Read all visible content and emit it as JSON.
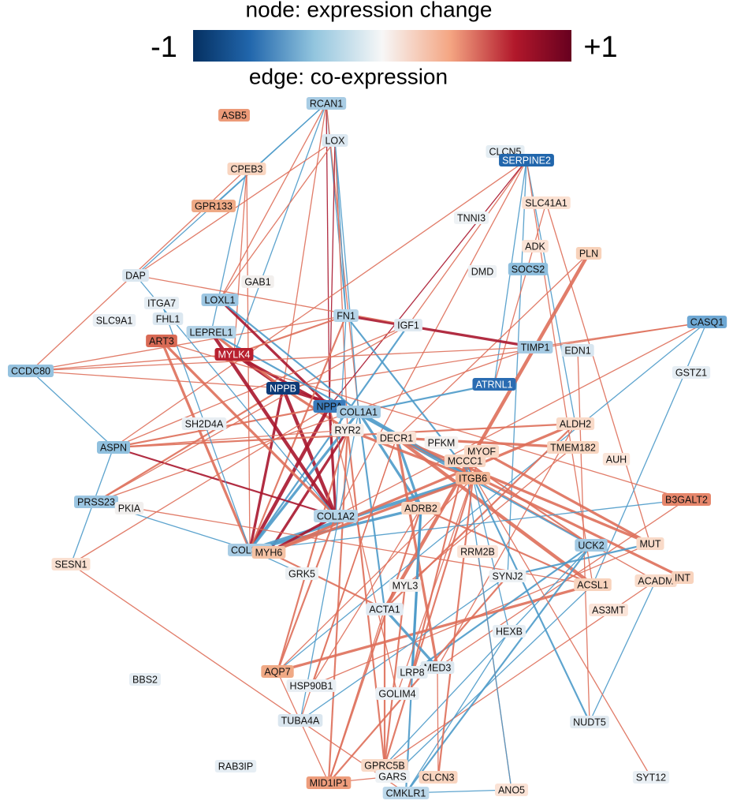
{
  "legend": {
    "title": "node: expression change",
    "min_label": "-1",
    "max_label": "+1",
    "edge_title": "edge: co-expression"
  },
  "nodes": [
    {
      "label": "RCAN1",
      "color": "#a8cce4"
    },
    {
      "label": "ASB5",
      "color": "#ec9a78"
    },
    {
      "label": "LOX",
      "color": "#dce8f1"
    },
    {
      "label": "CPEB3",
      "color": "#f9d5c0"
    },
    {
      "label": "CLCN5",
      "color": "#e4edf3"
    },
    {
      "label": "SERPINE2",
      "color": "#2166ac"
    },
    {
      "label": "SLC41A1",
      "color": "#fbe1d2"
    },
    {
      "label": "TNNI3",
      "color": "#eef2f5"
    },
    {
      "label": "GPR133",
      "color": "#efaa86"
    },
    {
      "label": "ADK",
      "color": "#fbe3d6"
    },
    {
      "label": "PLN",
      "color": "#f8d2ba"
    },
    {
      "label": "DMD",
      "color": "#edf1f4"
    },
    {
      "label": "SOCS2",
      "color": "#8fbfde"
    },
    {
      "label": "DAP",
      "color": "#dbe7f0"
    },
    {
      "label": "GAB1",
      "color": "#f2efed"
    },
    {
      "label": "ITGA7",
      "color": "#e6eef4"
    },
    {
      "label": "LOXL1",
      "color": "#9cc6e2"
    },
    {
      "label": "SLC9A1",
      "color": "#e9eff4"
    },
    {
      "label": "FHL1",
      "color": "#dbe7f0"
    },
    {
      "label": "FN1",
      "color": "#b7d5e9"
    },
    {
      "label": "IGF1",
      "color": "#dfe9f1"
    },
    {
      "label": "CASQ1",
      "color": "#6ea8d4"
    },
    {
      "label": "LEPREL1",
      "color": "#b5d4e8"
    },
    {
      "label": "ART3",
      "color": "#d96a55"
    },
    {
      "label": "MYLK4",
      "color": "#b8202f"
    },
    {
      "label": "TIMP1",
      "color": "#a6cbe4"
    },
    {
      "label": "EDN1",
      "color": "#d8e6f0"
    },
    {
      "label": "CCDC80",
      "color": "#95c2df"
    },
    {
      "label": "GSTZ1",
      "color": "#e6eef4"
    },
    {
      "label": "ATRNL1",
      "color": "#2a6cb2"
    },
    {
      "label": "NPPB",
      "color": "#0d3b78"
    },
    {
      "label": "NPPA",
      "color": "#3a7bbb"
    },
    {
      "label": "COL1A1",
      "color": "#a6cbe4"
    },
    {
      "label": "ALDH2",
      "color": "#f9dac8"
    },
    {
      "label": "SH2D4A",
      "color": "#e8eef3"
    },
    {
      "label": "RYR2",
      "color": "#f3ece8"
    },
    {
      "label": "DECR1",
      "color": "#f9e2d5"
    },
    {
      "label": "PFKM",
      "color": "#f4f1ef"
    },
    {
      "label": "MYOF",
      "color": "#f9d9c6"
    },
    {
      "label": "TMEM182",
      "color": "#f8d6c1"
    },
    {
      "label": "ASPN",
      "color": "#90c0de"
    },
    {
      "label": "MCCC1",
      "color": "#f8d8c5"
    },
    {
      "label": "AUH",
      "color": "#fbe6da"
    },
    {
      "label": "ITGB6",
      "color": "#f3b898"
    },
    {
      "label": "B3GALT2",
      "color": "#e6866b"
    },
    {
      "label": "PRSS23",
      "color": "#9cc6e2"
    },
    {
      "label": "PKIA",
      "color": "#f1efee"
    },
    {
      "label": "ADRB2",
      "color": "#f8d3bd"
    },
    {
      "label": "COL1A2",
      "color": "#b5d4e8"
    },
    {
      "label": "UCK2",
      "color": "#a1c9e3"
    },
    {
      "label": "MUT",
      "color": "#f9dac8"
    },
    {
      "label": "COL3A1",
      "color": "#a8cce4"
    },
    {
      "label": "MYH6",
      "color": "#f5c2a4"
    },
    {
      "label": "RRM2B",
      "color": "#fbe4d8"
    },
    {
      "label": "SESN1",
      "color": "#fae0d1"
    },
    {
      "label": "SYNJ2",
      "color": "#edf1f4"
    },
    {
      "label": "GRK5",
      "color": "#ecf0f3"
    },
    {
      "label": "ACSL1",
      "color": "#f8d3bd"
    },
    {
      "label": "ACADM",
      "color": "#f9dccb"
    },
    {
      "label": "INT",
      "color": "#f8d3bd"
    },
    {
      "label": "MYL3",
      "color": "#f2f0ef"
    },
    {
      "label": "AS3MT",
      "color": "#fbe4d8"
    },
    {
      "label": "ACTA1",
      "color": "#e1eaf2"
    },
    {
      "label": "HEXB",
      "color": "#e6eef4"
    },
    {
      "label": "AQP7",
      "color": "#f0a985"
    },
    {
      "label": "MED3",
      "color": "#dde8f0"
    },
    {
      "label": "LRP8",
      "color": "#e4edf3"
    },
    {
      "label": "BBS2",
      "color": "#e6eef4"
    },
    {
      "label": "HSP90B1",
      "color": "#e9eff4"
    },
    {
      "label": "GOLIM4",
      "color": "#e9eff4"
    },
    {
      "label": "NUDT5",
      "color": "#e2ebf2"
    },
    {
      "label": "TUBA4A",
      "color": "#dae6ef"
    },
    {
      "label": "RAB3IP",
      "color": "#e6eef4"
    },
    {
      "label": "GPRC5B",
      "color": "#f9d9c6"
    },
    {
      "label": "GARS",
      "color": "#eef2f5"
    },
    {
      "label": "CLCN3",
      "color": "#f9d5c0"
    },
    {
      "label": "SYT12",
      "color": "#e9eff4"
    },
    {
      "label": "MID1IP1",
      "color": "#ee9d7c"
    },
    {
      "label": "ANO5",
      "color": "#fbe3d6"
    },
    {
      "label": "CMKLR1",
      "color": "#bcd8ea"
    }
  ]
}
